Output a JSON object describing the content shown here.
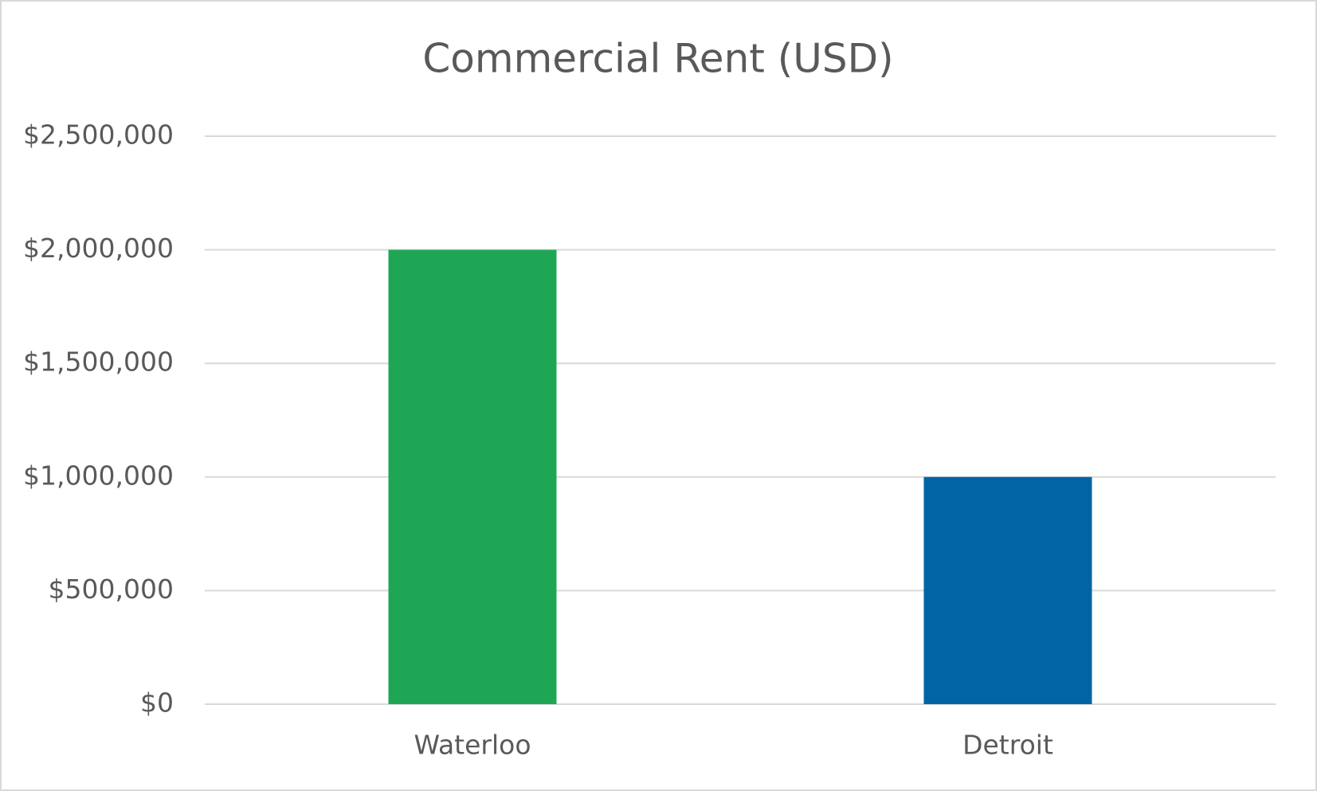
{
  "chart_data": {
    "type": "bar",
    "title": "Commercial Rent (USD)",
    "categories": [
      "Waterloo",
      "Detroit"
    ],
    "values": [
      2000000,
      1000000
    ],
    "colors": [
      "#1fa655",
      "#0064a5"
    ],
    "ylim": [
      0,
      2500000
    ],
    "yticks": [
      {
        "value": 0,
        "label": "$0"
      },
      {
        "value": 500000,
        "label": "$500,000"
      },
      {
        "value": 1000000,
        "label": "$1,000,000"
      },
      {
        "value": 1500000,
        "label": "$1,500,000"
      },
      {
        "value": 2000000,
        "label": "$2,000,000"
      },
      {
        "value": 2500000,
        "label": "$2,500,000"
      }
    ],
    "grid": true
  }
}
